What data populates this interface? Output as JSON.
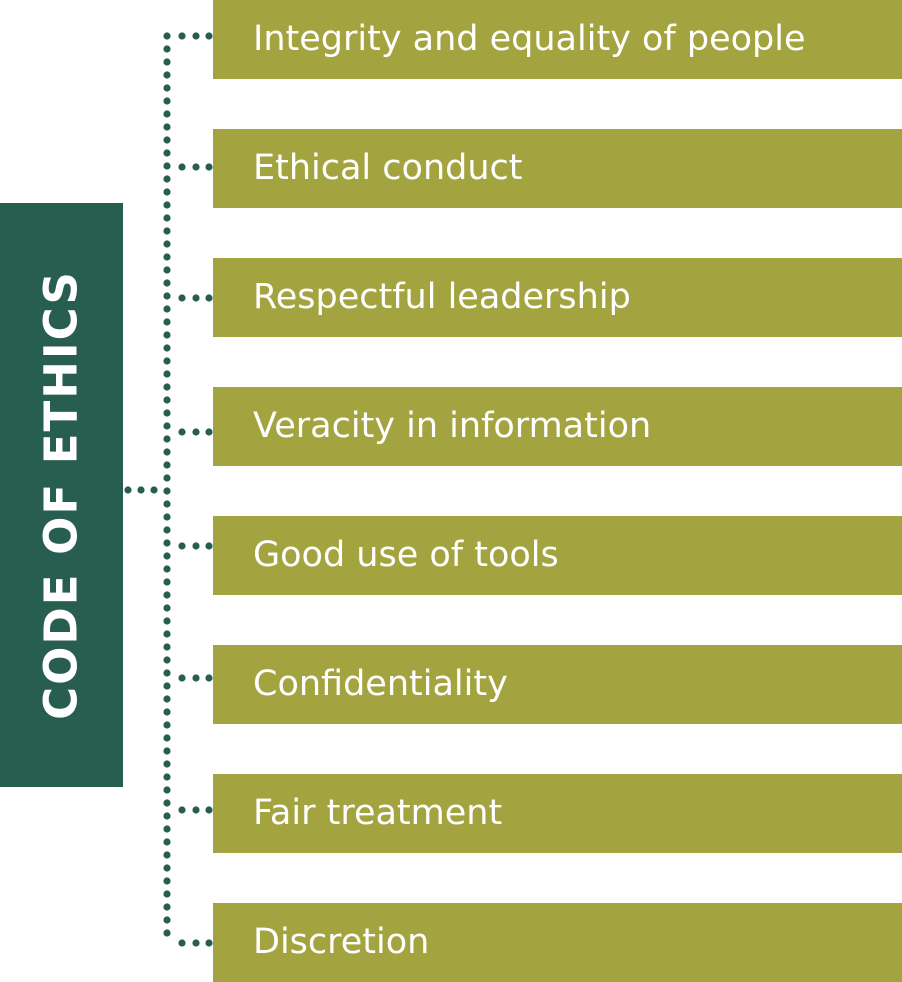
{
  "title": "CODE OF ETHICS",
  "items": [
    {
      "label": "Integrity and equality of people"
    },
    {
      "label": "Ethical conduct"
    },
    {
      "label": "Respectful leadership"
    },
    {
      "label": "Veracity in information"
    },
    {
      "label": "Good use of tools"
    },
    {
      "label": "Confidentiality"
    },
    {
      "label": "Fair treatment"
    },
    {
      "label": "Discretion"
    }
  ],
  "colors": {
    "title_box": "#285e4f",
    "item_bar": "#a3a340",
    "connector_dots": "#285e4f",
    "text": "#ffffff"
  }
}
